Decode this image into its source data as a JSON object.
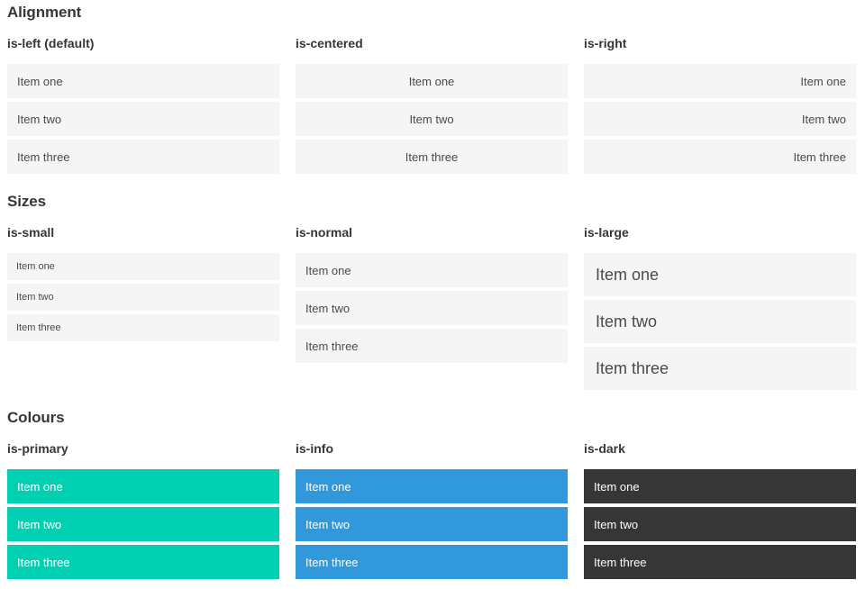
{
  "colors": {
    "primary": "#00d1b2",
    "info": "#3298dc",
    "dark": "#363636",
    "item_bg": "#f5f5f5",
    "item_text": "#4a4a4a",
    "item_text_inverse": "#ffffff",
    "heading_text": "#363636"
  },
  "sections": [
    {
      "title": "Alignment",
      "columns": [
        {
          "label": "is-left (default)",
          "items": [
            "Item one",
            "Item two",
            "Item three"
          ]
        },
        {
          "label": "is-centered",
          "items": [
            "Item one",
            "Item two",
            "Item three"
          ]
        },
        {
          "label": "is-right",
          "items": [
            "Item one",
            "Item two",
            "Item three"
          ]
        }
      ]
    },
    {
      "title": "Sizes",
      "columns": [
        {
          "label": "is-small",
          "items": [
            "Item one",
            "Item two",
            "Item three"
          ]
        },
        {
          "label": "is-normal",
          "items": [
            "Item one",
            "Item two",
            "Item three"
          ]
        },
        {
          "label": "is-large",
          "items": [
            "Item one",
            "Item two",
            "Item three"
          ]
        }
      ]
    },
    {
      "title": "Colours",
      "columns": [
        {
          "label": "is-primary",
          "items": [
            "Item one",
            "Item two",
            "Item three"
          ]
        },
        {
          "label": "is-info",
          "items": [
            "Item one",
            "Item two",
            "Item three"
          ]
        },
        {
          "label": "is-dark",
          "items": [
            "Item one",
            "Item two",
            "Item three"
          ]
        }
      ]
    }
  ]
}
